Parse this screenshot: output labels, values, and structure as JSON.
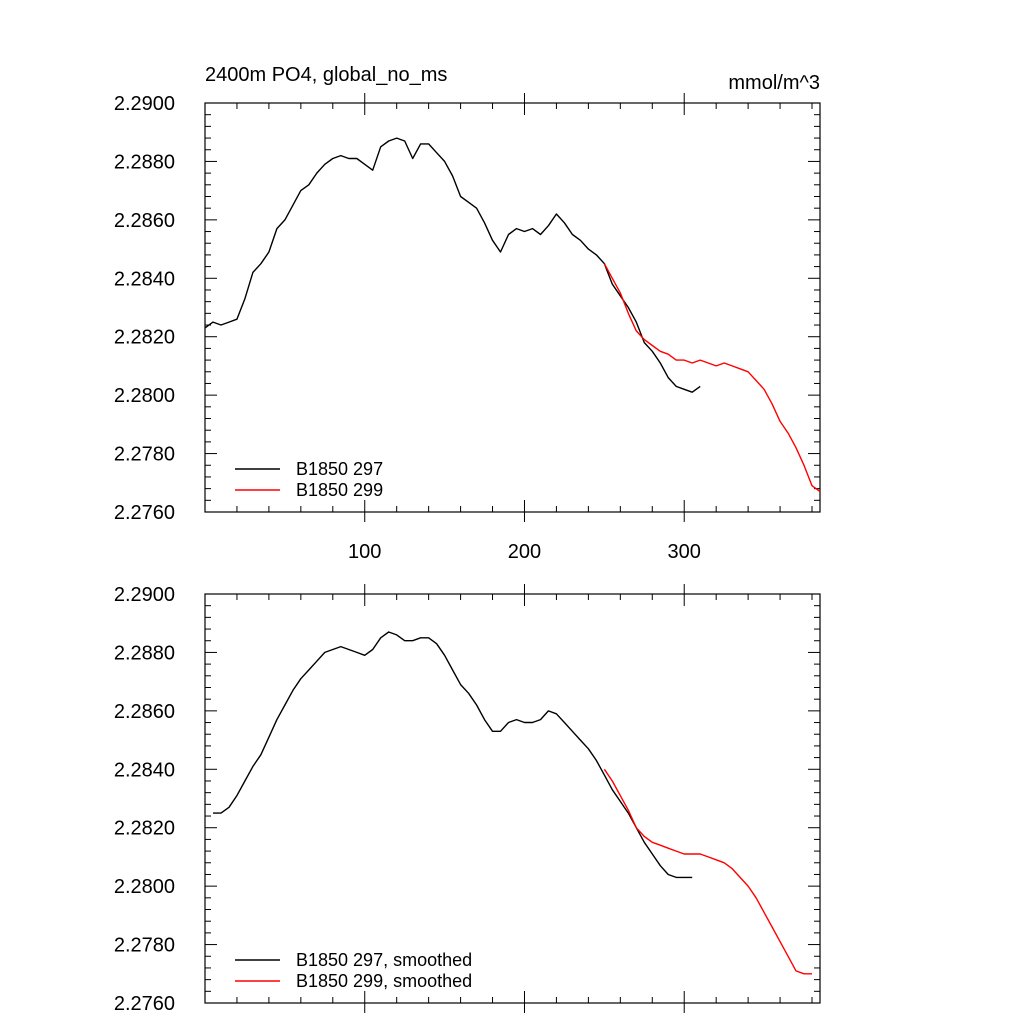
{
  "chart_data": [
    {
      "type": "line",
      "title": "2400m PO4, global_no_ms",
      "units_label": "mmol/m^3",
      "xlabel": "",
      "ylabel": "",
      "xlim": [
        0,
        385
      ],
      "ylim": [
        2.276,
        2.29
      ],
      "x_tick_labels": [
        "100",
        "200",
        "300"
      ],
      "x_ticks": [
        100,
        200,
        300
      ],
      "y_tick_labels": [
        "2.2900",
        "2.2880",
        "2.2860",
        "2.2840",
        "2.2820",
        "2.2800",
        "2.2780",
        "2.2760"
      ],
      "y_ticks": [
        2.29,
        2.288,
        2.286,
        2.284,
        2.282,
        2.28,
        2.278,
        2.276
      ],
      "legend_position": "bottom-left",
      "series": [
        {
          "name": "B1850 297",
          "color": "#000000",
          "x": [
            0,
            5,
            10,
            15,
            20,
            25,
            30,
            35,
            40,
            45,
            50,
            55,
            60,
            65,
            70,
            75,
            80,
            85,
            90,
            95,
            100,
            105,
            110,
            115,
            120,
            125,
            130,
            135,
            140,
            145,
            150,
            155,
            160,
            165,
            170,
            175,
            180,
            185,
            190,
            195,
            200,
            205,
            210,
            215,
            220,
            225,
            230,
            235,
            240,
            245,
            250,
            255,
            260,
            265,
            270,
            275,
            280,
            285,
            290,
            295,
            300,
            305,
            310
          ],
          "values": [
            2.2823,
            2.2825,
            2.2824,
            2.2825,
            2.2826,
            2.2833,
            2.2842,
            2.2845,
            2.2849,
            2.2857,
            2.286,
            2.2865,
            2.287,
            2.2872,
            2.2876,
            2.2879,
            2.2881,
            2.2882,
            2.2881,
            2.2881,
            2.2879,
            2.2877,
            2.2885,
            2.2887,
            2.2888,
            2.2887,
            2.2881,
            2.2886,
            2.2886,
            2.2883,
            2.288,
            2.2875,
            2.2868,
            2.2866,
            2.2864,
            2.2859,
            2.2853,
            2.2849,
            2.2855,
            2.2857,
            2.2856,
            2.2857,
            2.2855,
            2.2858,
            2.2862,
            2.2859,
            2.2855,
            2.2853,
            2.285,
            2.2848,
            2.2845,
            2.2838,
            2.2834,
            2.283,
            2.2825,
            2.2818,
            2.2815,
            2.2811,
            2.2806,
            2.2803,
            2.2802,
            2.2801,
            2.2803
          ]
        },
        {
          "name": "B1850 299",
          "color": "#ff0000",
          "x": [
            250,
            255,
            260,
            265,
            270,
            275,
            280,
            285,
            290,
            295,
            300,
            305,
            310,
            315,
            320,
            325,
            330,
            335,
            340,
            345,
            350,
            355,
            360,
            365,
            370,
            375,
            380,
            385
          ],
          "values": [
            2.2845,
            2.284,
            2.2835,
            2.2828,
            2.2822,
            2.2819,
            2.2817,
            2.2815,
            2.2814,
            2.2812,
            2.2812,
            2.2811,
            2.2812,
            2.2811,
            2.281,
            2.2811,
            2.281,
            2.2809,
            2.2808,
            2.2805,
            2.2802,
            2.2797,
            2.2791,
            2.2787,
            2.2782,
            2.2776,
            2.2769,
            2.2767
          ]
        }
      ]
    },
    {
      "type": "line",
      "title": "",
      "xlabel": "",
      "ylabel": "",
      "xlim": [
        0,
        385
      ],
      "ylim": [
        2.276,
        2.29
      ],
      "x_ticks": [
        100,
        200,
        300
      ],
      "y_tick_labels": [
        "2.2900",
        "2.2880",
        "2.2860",
        "2.2840",
        "2.2820",
        "2.2800",
        "2.2780",
        "2.2760"
      ],
      "y_ticks": [
        2.29,
        2.288,
        2.286,
        2.284,
        2.282,
        2.28,
        2.278,
        2.276
      ],
      "legend_position": "bottom-left",
      "series": [
        {
          "name": "B1850 297, smoothed",
          "color": "#000000",
          "x": [
            5,
            10,
            15,
            20,
            25,
            30,
            35,
            40,
            45,
            50,
            55,
            60,
            65,
            70,
            75,
            80,
            85,
            90,
            95,
            100,
            105,
            110,
            115,
            120,
            125,
            130,
            135,
            140,
            145,
            150,
            155,
            160,
            165,
            170,
            175,
            180,
            185,
            190,
            195,
            200,
            205,
            210,
            215,
            220,
            225,
            230,
            235,
            240,
            245,
            250,
            255,
            260,
            265,
            270,
            275,
            280,
            285,
            290,
            295,
            300,
            305
          ],
          "values": [
            2.2825,
            2.2825,
            2.2827,
            2.2831,
            2.2836,
            2.2841,
            2.2845,
            2.2851,
            2.2857,
            2.2862,
            2.2867,
            2.2871,
            2.2874,
            2.2877,
            2.288,
            2.2881,
            2.2882,
            2.2881,
            2.288,
            2.2879,
            2.2881,
            2.2885,
            2.2887,
            2.2886,
            2.2884,
            2.2884,
            2.2885,
            2.2885,
            2.2883,
            2.2879,
            2.2874,
            2.2869,
            2.2866,
            2.2862,
            2.2857,
            2.2853,
            2.2853,
            2.2856,
            2.2857,
            2.2856,
            2.2856,
            2.2857,
            2.286,
            2.2859,
            2.2856,
            2.2853,
            2.285,
            2.2847,
            2.2843,
            2.2838,
            2.2833,
            2.2829,
            2.2825,
            2.282,
            2.2815,
            2.2811,
            2.2807,
            2.2804,
            2.2803,
            2.2803,
            2.2803
          ]
        },
        {
          "name": "B1850 299, smoothed",
          "color": "#ff0000",
          "x": [
            250,
            255,
            260,
            265,
            270,
            275,
            280,
            285,
            290,
            295,
            300,
            305,
            310,
            315,
            320,
            325,
            330,
            335,
            340,
            345,
            350,
            355,
            360,
            365,
            370,
            375,
            380
          ],
          "values": [
            2.284,
            2.2836,
            2.2831,
            2.2826,
            2.282,
            2.2817,
            2.2815,
            2.2814,
            2.2813,
            2.2812,
            2.2811,
            2.2811,
            2.2811,
            2.281,
            2.2809,
            2.2808,
            2.2806,
            2.2803,
            2.28,
            2.2796,
            2.2791,
            2.2786,
            2.2781,
            2.2776,
            2.2771,
            2.277,
            2.277
          ]
        }
      ]
    }
  ]
}
